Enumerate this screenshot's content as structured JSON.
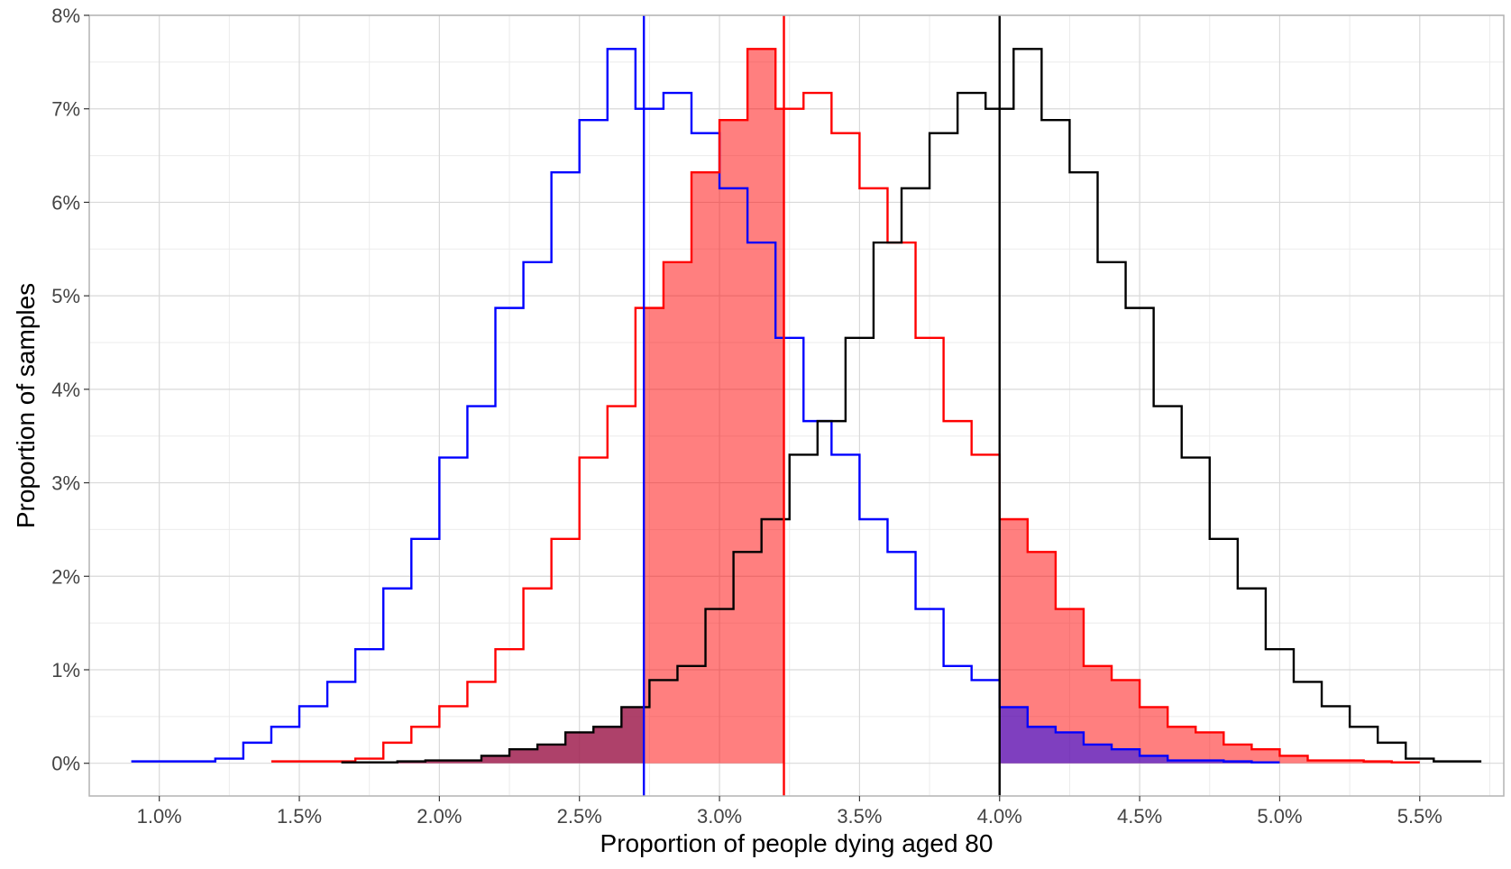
{
  "chart_data": {
    "type": "histogram",
    "title": "",
    "xlabel": "Proportion of people dying aged 80",
    "ylabel": "Proportion of samples",
    "xlim": [
      0.0075,
      0.058
    ],
    "ylim": [
      -0.0035,
      0.08
    ],
    "grid": true,
    "legend": "none",
    "x_ticks": [
      0.01,
      0.015,
      0.02,
      0.025,
      0.03,
      0.035,
      0.04,
      0.045,
      0.05,
      0.055
    ],
    "x_tick_labels": [
      "1.0%",
      "1.5%",
      "2.0%",
      "2.5%",
      "3.0%",
      "3.5%",
      "4.0%",
      "4.5%",
      "5.0%",
      "5.5%"
    ],
    "y_ticks": [
      0,
      0.01,
      0.02,
      0.03,
      0.04,
      0.05,
      0.06,
      0.07,
      0.08
    ],
    "y_tick_labels": [
      "0%",
      "1%",
      "2%",
      "3%",
      "4%",
      "5%",
      "6%",
      "7%",
      "8%"
    ],
    "series": [
      {
        "color": "#0000ff",
        "bins": [
          [
            0.009,
            0.0002
          ],
          [
            0.01,
            0.0002
          ],
          [
            0.011,
            0.0002
          ],
          [
            0.012,
            0.0005
          ],
          [
            0.013,
            0.0022
          ],
          [
            0.014,
            0.0039
          ],
          [
            0.015,
            0.0061
          ],
          [
            0.016,
            0.0087
          ],
          [
            0.017,
            0.0122
          ],
          [
            0.018,
            0.0187
          ],
          [
            0.019,
            0.024
          ],
          [
            0.02,
            0.0327
          ],
          [
            0.021,
            0.0382
          ],
          [
            0.022,
            0.0487
          ],
          [
            0.023,
            0.0536
          ],
          [
            0.024,
            0.0632
          ],
          [
            0.025,
            0.0688
          ],
          [
            0.026,
            0.0764
          ],
          [
            0.027,
            0.07
          ],
          [
            0.028,
            0.0717
          ],
          [
            0.029,
            0.0674
          ],
          [
            0.03,
            0.0615
          ],
          [
            0.031,
            0.0557
          ],
          [
            0.032,
            0.0455
          ],
          [
            0.033,
            0.0366
          ],
          [
            0.034,
            0.033
          ],
          [
            0.035,
            0.0261
          ],
          [
            0.036,
            0.0226
          ],
          [
            0.037,
            0.0165
          ],
          [
            0.038,
            0.0104
          ],
          [
            0.039,
            0.0089
          ],
          [
            0.04,
            0.006
          ],
          [
            0.041,
            0.0039
          ],
          [
            0.042,
            0.0033
          ],
          [
            0.043,
            0.002
          ],
          [
            0.044,
            0.0015
          ],
          [
            0.045,
            0.0008
          ],
          [
            0.046,
            0.0003
          ],
          [
            0.047,
            0.0003
          ],
          [
            0.048,
            0.0002
          ],
          [
            0.049,
            0.0001
          ]
        ],
        "end": 0.05,
        "vline": 0.0273
      },
      {
        "color": "#ff0000",
        "bins": [
          [
            0.014,
            0.0002
          ],
          [
            0.015,
            0.0002
          ],
          [
            0.016,
            0.0002
          ],
          [
            0.017,
            0.0005
          ],
          [
            0.018,
            0.0022
          ],
          [
            0.019,
            0.0039
          ],
          [
            0.02,
            0.0061
          ],
          [
            0.021,
            0.0087
          ],
          [
            0.022,
            0.0122
          ],
          [
            0.023,
            0.0187
          ],
          [
            0.024,
            0.024
          ],
          [
            0.025,
            0.0327
          ],
          [
            0.026,
            0.0382
          ],
          [
            0.027,
            0.0487
          ],
          [
            0.028,
            0.0536
          ],
          [
            0.029,
            0.0632
          ],
          [
            0.03,
            0.0688
          ],
          [
            0.031,
            0.0764
          ],
          [
            0.032,
            0.07
          ],
          [
            0.033,
            0.0717
          ],
          [
            0.034,
            0.0674
          ],
          [
            0.035,
            0.0615
          ],
          [
            0.036,
            0.0557
          ],
          [
            0.037,
            0.0455
          ],
          [
            0.038,
            0.0366
          ],
          [
            0.039,
            0.033
          ],
          [
            0.04,
            0.0261
          ],
          [
            0.041,
            0.0226
          ],
          [
            0.042,
            0.0165
          ],
          [
            0.043,
            0.0104
          ],
          [
            0.044,
            0.0089
          ],
          [
            0.045,
            0.006
          ],
          [
            0.046,
            0.0039
          ],
          [
            0.047,
            0.0033
          ],
          [
            0.048,
            0.002
          ],
          [
            0.049,
            0.0015
          ],
          [
            0.05,
            0.0008
          ],
          [
            0.051,
            0.0003
          ],
          [
            0.052,
            0.0003
          ],
          [
            0.053,
            0.0002
          ],
          [
            0.054,
            0.0001
          ]
        ],
        "end": 0.055,
        "vline": 0.0323
      },
      {
        "color": "#000000",
        "bins": [
          [
            0.0165,
            0.0001
          ],
          [
            0.0175,
            0.0001
          ],
          [
            0.0185,
            0.0002
          ],
          [
            0.0195,
            0.0003
          ],
          [
            0.0205,
            0.0003
          ],
          [
            0.0215,
            0.0008
          ],
          [
            0.0225,
            0.0015
          ],
          [
            0.0235,
            0.002
          ],
          [
            0.0245,
            0.0033
          ],
          [
            0.0255,
            0.0039
          ],
          [
            0.0265,
            0.006
          ],
          [
            0.0275,
            0.0089
          ],
          [
            0.0285,
            0.0104
          ],
          [
            0.0295,
            0.0165
          ],
          [
            0.0305,
            0.0226
          ],
          [
            0.0315,
            0.0261
          ],
          [
            0.0325,
            0.033
          ],
          [
            0.0335,
            0.0366
          ],
          [
            0.0345,
            0.0455
          ],
          [
            0.0355,
            0.0557
          ],
          [
            0.0365,
            0.0615
          ],
          [
            0.0375,
            0.0674
          ],
          [
            0.0385,
            0.0717
          ],
          [
            0.0395,
            0.07
          ],
          [
            0.0405,
            0.0764
          ],
          [
            0.0415,
            0.0688
          ],
          [
            0.0425,
            0.0632
          ],
          [
            0.0435,
            0.0536
          ],
          [
            0.0445,
            0.0487
          ],
          [
            0.0455,
            0.0382
          ],
          [
            0.0465,
            0.0327
          ],
          [
            0.0475,
            0.024
          ],
          [
            0.0485,
            0.0187
          ],
          [
            0.0495,
            0.0122
          ],
          [
            0.0505,
            0.0087
          ],
          [
            0.0515,
            0.0061
          ],
          [
            0.0525,
            0.0039
          ],
          [
            0.0535,
            0.0022
          ],
          [
            0.0545,
            0.0005
          ],
          [
            0.0555,
            0.0002
          ],
          [
            0.0565,
            0.0002
          ]
        ],
        "end": 0.0572,
        "vline": 0.04
      }
    ],
    "shaded_regions": [
      {
        "series_index": 1,
        "from": 0.0273,
        "to": 0.0323,
        "color": "#ff0000",
        "opacity": 0.5
      },
      {
        "series_index": 1,
        "from": 0.04,
        "to": 0.055,
        "color": "#ff0000",
        "opacity": 0.5
      },
      {
        "series_index": 0,
        "from": 0.04,
        "to": 0.05,
        "color": "#0000ff",
        "opacity": 0.5
      },
      {
        "series_index": 2,
        "from": 0.014,
        "to": 0.0273,
        "color": "#a02050",
        "opacity": 0.85
      }
    ]
  }
}
